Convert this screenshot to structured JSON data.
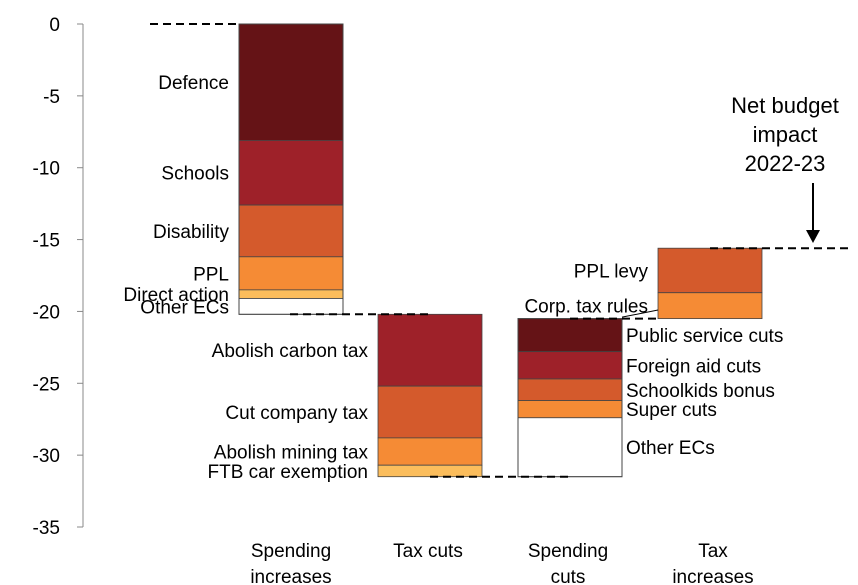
{
  "chart_data": {
    "type": "waterfall-stacked-bar",
    "ylabel": "",
    "ylim": [
      -35,
      0
    ],
    "yticks": [
      0,
      -5,
      -10,
      -15,
      -20,
      -25,
      -30,
      -35
    ],
    "categories": [
      {
        "line1": "Spending",
        "line2": "increases"
      },
      {
        "line1": "Tax cuts",
        "line2": ""
      },
      {
        "line1": "Spending",
        "line2": "cuts"
      },
      {
        "line1": "Tax",
        "line2": "increases"
      }
    ],
    "bars": [
      {
        "category": 0,
        "label_side": "left",
        "segments": [
          {
            "name": "Defence",
            "from": 0,
            "to": -8.1,
            "color": "#651316"
          },
          {
            "name": "Schools",
            "from": -8.1,
            "to": -12.6,
            "color": "#9e2129"
          },
          {
            "name": "Disability",
            "from": -12.6,
            "to": -16.2,
            "color": "#d45a2c"
          },
          {
            "name": "PPL",
            "from": -16.2,
            "to": -18.5,
            "color": "#f58b35"
          },
          {
            "name": "Direct action",
            "from": -18.5,
            "to": -19.1,
            "color": "#fbbd5c"
          },
          {
            "name": "Other ECs",
            "from": -19.1,
            "to": -20.2,
            "color": "#ffffff"
          }
        ]
      },
      {
        "category": 1,
        "label_side": "left",
        "segments": [
          {
            "name": "Abolish carbon tax",
            "from": -20.2,
            "to": -25.2,
            "color": "#9e2129"
          },
          {
            "name": "Cut company tax",
            "from": -25.2,
            "to": -28.8,
            "color": "#d45a2c"
          },
          {
            "name": "Abolish mining tax",
            "from": -28.8,
            "to": -30.7,
            "color": "#f58b35"
          },
          {
            "name": "FTB car exemption",
            "from": -30.7,
            "to": -31.5,
            "color": "#fbbd5c"
          }
        ]
      },
      {
        "category": 2,
        "label_side": "right",
        "segments": [
          {
            "name": "Public service cuts",
            "from": -31.5,
            "to": -29.2,
            "color": "#651316",
            "stack_top": true
          },
          {
            "name": "Foreign aid cuts",
            "from": -22.8,
            "to": -24.7,
            "color": "#9e2129"
          },
          {
            "name": "Schoolkids bonus",
            "from": -24.7,
            "to": -26.2,
            "color": "#d45a2c"
          },
          {
            "name": "Super cuts",
            "from": -26.2,
            "to": -27.4,
            "color": "#f58b35"
          },
          {
            "name": "Other ECs",
            "from": -27.4,
            "to": -31.5,
            "color": "#ffffff"
          }
        ]
      },
      {
        "category": 3,
        "label_side": "left",
        "segments": [
          {
            "name": "PPL levy",
            "from": -15.6,
            "to": -18.7,
            "color": "#d45a2c"
          },
          {
            "name": "Corp. tax rules",
            "from": -18.7,
            "to": -20.5,
            "color": "#f58b35"
          }
        ]
      }
    ],
    "connectors": [
      0,
      -20.2,
      -31.5,
      -20.5,
      -15.6
    ],
    "annotation": {
      "line1": "Net budget",
      "line2": "impact",
      "line3": "2022-23",
      "value": -15.6
    }
  }
}
